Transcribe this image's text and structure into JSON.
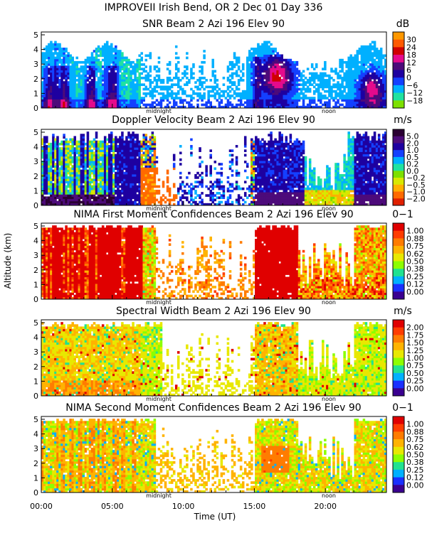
{
  "figure": {
    "suptitle": "IMPROVEII  Irish Bend, OR    2 Dec 01 Day 336",
    "ylabel": "Altitude (km)",
    "xlabel": "Time (UT)",
    "x_ticks": [
      "00:00",
      "05:00",
      "10:00",
      "15:00",
      "20:00"
    ],
    "y_ticks": [
      "0",
      "1",
      "2",
      "3",
      "4",
      "5"
    ],
    "markers": [
      "midnight",
      "noon"
    ]
  },
  "chart_data": [
    {
      "type": "heatmap",
      "title": "SNR Beam 2 Azi 196 Elev 90",
      "unit": "dB",
      "colorbar": [
        "30",
        "24",
        "18",
        "12",
        "6",
        "0",
        "−6",
        "−12",
        "−18"
      ],
      "colors": [
        "#ff9800",
        "#ff5a00",
        "#d00000",
        "#e40b8c",
        "#4d0b7a",
        "#1e00a0",
        "#1440ff",
        "#00b0ff",
        "#20e2a0",
        "#7de000"
      ],
      "x": [
        0,
        24
      ],
      "xlabel": "Time (UT)",
      "y": [
        0,
        5
      ],
      "ylabel": "Altitude (km)",
      "scheme": "snr"
    },
    {
      "type": "heatmap",
      "title": "Doppler Velocity Beam 2 Azi 196 Elev 90",
      "unit": "m/s",
      "colorbar": [
        "5.0",
        "2.0",
        "1.0",
        "0.5",
        "0.2",
        "0.0",
        "−0.2",
        "−0.5",
        "−1.0",
        "−2.0"
      ],
      "colors": [
        "#2b0033",
        "#4d0b7a",
        "#1e00a0",
        "#1440ff",
        "#00b0ff",
        "#20e2a0",
        "#7de000",
        "#d8e800",
        "#ffb000",
        "#ff6a00",
        "#e02000"
      ],
      "x": [
        0,
        24
      ],
      "xlabel": "Time (UT)",
      "y": [
        0,
        5
      ],
      "ylabel": "Altitude (km)",
      "scheme": "doppler"
    },
    {
      "type": "heatmap",
      "title": "NIMA First Moment Confidences Beam 2 Azi 196 Elev 90",
      "unit": "0−1",
      "colorbar": [
        "1.00",
        "0.88",
        "0.75",
        "0.62",
        "0.50",
        "0.38",
        "0.25",
        "0.12",
        "0.00"
      ],
      "colors": [
        "#e00000",
        "#ff3c00",
        "#ff7c00",
        "#ffb300",
        "#e8e800",
        "#8cff00",
        "#20e290",
        "#00b0ff",
        "#1a30ff",
        "#3a0090"
      ],
      "x": [
        0,
        24
      ],
      "xlabel": "Time (UT)",
      "y": [
        0,
        5
      ],
      "ylabel": "Altitude (km)",
      "scheme": "conf1"
    },
    {
      "type": "heatmap",
      "title": "Spectral Width Beam 2 Azi 196 Elev 90",
      "unit": "m/s",
      "colorbar": [
        "2.00",
        "1.75",
        "1.50",
        "1.25",
        "1.00",
        "0.75",
        "0.50",
        "0.25",
        "0.00"
      ],
      "colors": [
        "#e00000",
        "#ff3c00",
        "#ff7c00",
        "#ffb300",
        "#e8e800",
        "#8cff00",
        "#20e290",
        "#00b0ff",
        "#1a30ff",
        "#3a0090"
      ],
      "x": [
        0,
        24
      ],
      "xlabel": "Time (UT)",
      "y": [
        0,
        5
      ],
      "ylabel": "Altitude (km)",
      "scheme": "width"
    },
    {
      "type": "heatmap",
      "title": "NIMA Second Moment Confidences Beam 2 Azi 196 Elev 90",
      "unit": "0−1",
      "colorbar": [
        "1.00",
        "0.88",
        "0.75",
        "0.62",
        "0.50",
        "0.38",
        "0.25",
        "0.12",
        "0.00"
      ],
      "colors": [
        "#e00000",
        "#ff3c00",
        "#ff7c00",
        "#ffb300",
        "#e8e800",
        "#8cff00",
        "#20e290",
        "#00b0ff",
        "#1a30ff",
        "#3a0090"
      ],
      "x": [
        0,
        24
      ],
      "xlabel": "Time (UT)",
      "y": [
        0,
        5
      ],
      "ylabel": "Altitude (km)",
      "scheme": "conf2"
    }
  ]
}
